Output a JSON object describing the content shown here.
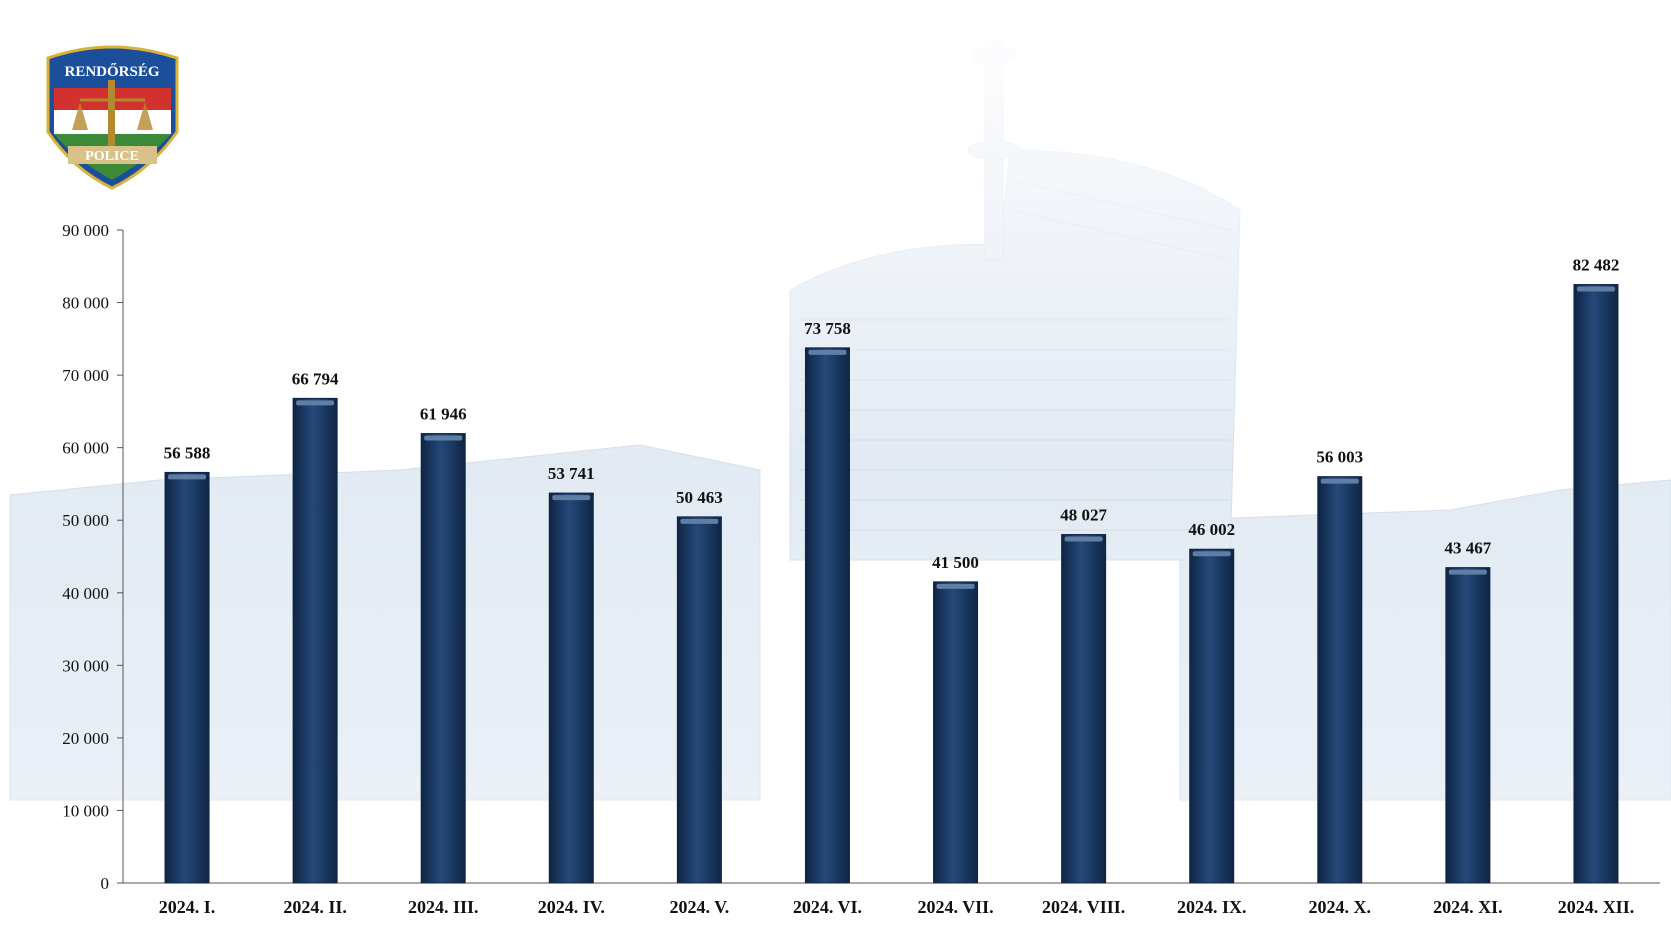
{
  "logo": {
    "top_text": "RENDŐRSÉG",
    "bottom_text": "POLICE"
  },
  "colors": {
    "bar": "#1e3a63",
    "bar_edge": "#0f2544",
    "bar_highlight": "#5f7ea6",
    "axis": "#555555",
    "background_tint": "#dfe8f2"
  },
  "chart_data": {
    "type": "bar",
    "title": "",
    "xlabel": "",
    "ylabel": "",
    "ylim": [
      0,
      90000
    ],
    "yticks": [
      0,
      10000,
      20000,
      30000,
      40000,
      50000,
      60000,
      70000,
      80000,
      90000
    ],
    "ytick_labels": [
      "0",
      "10 000",
      "20 000",
      "30 000",
      "40 000",
      "50 000",
      "60 000",
      "70 000",
      "80 000",
      "90 000"
    ],
    "grid": false,
    "categories": [
      "2024. I.",
      "2024. II.",
      "2024. III.",
      "2024. IV.",
      "2024. V.",
      "2024. VI.",
      "2024. VII.",
      "2024. VIII.",
      "2024. IX.",
      "2024. X.",
      "2024. XI.",
      "2024. XII."
    ],
    "values": [
      56588,
      66794,
      61946,
      53741,
      50463,
      73758,
      41500,
      48027,
      46002,
      56003,
      43467,
      82482
    ],
    "value_labels": [
      "56 588",
      "66 794",
      "61 946",
      "53 741",
      "50 463",
      "73 758",
      "41 500",
      "48 027",
      "46 002",
      "56 003",
      "43 467",
      "82 482"
    ]
  }
}
